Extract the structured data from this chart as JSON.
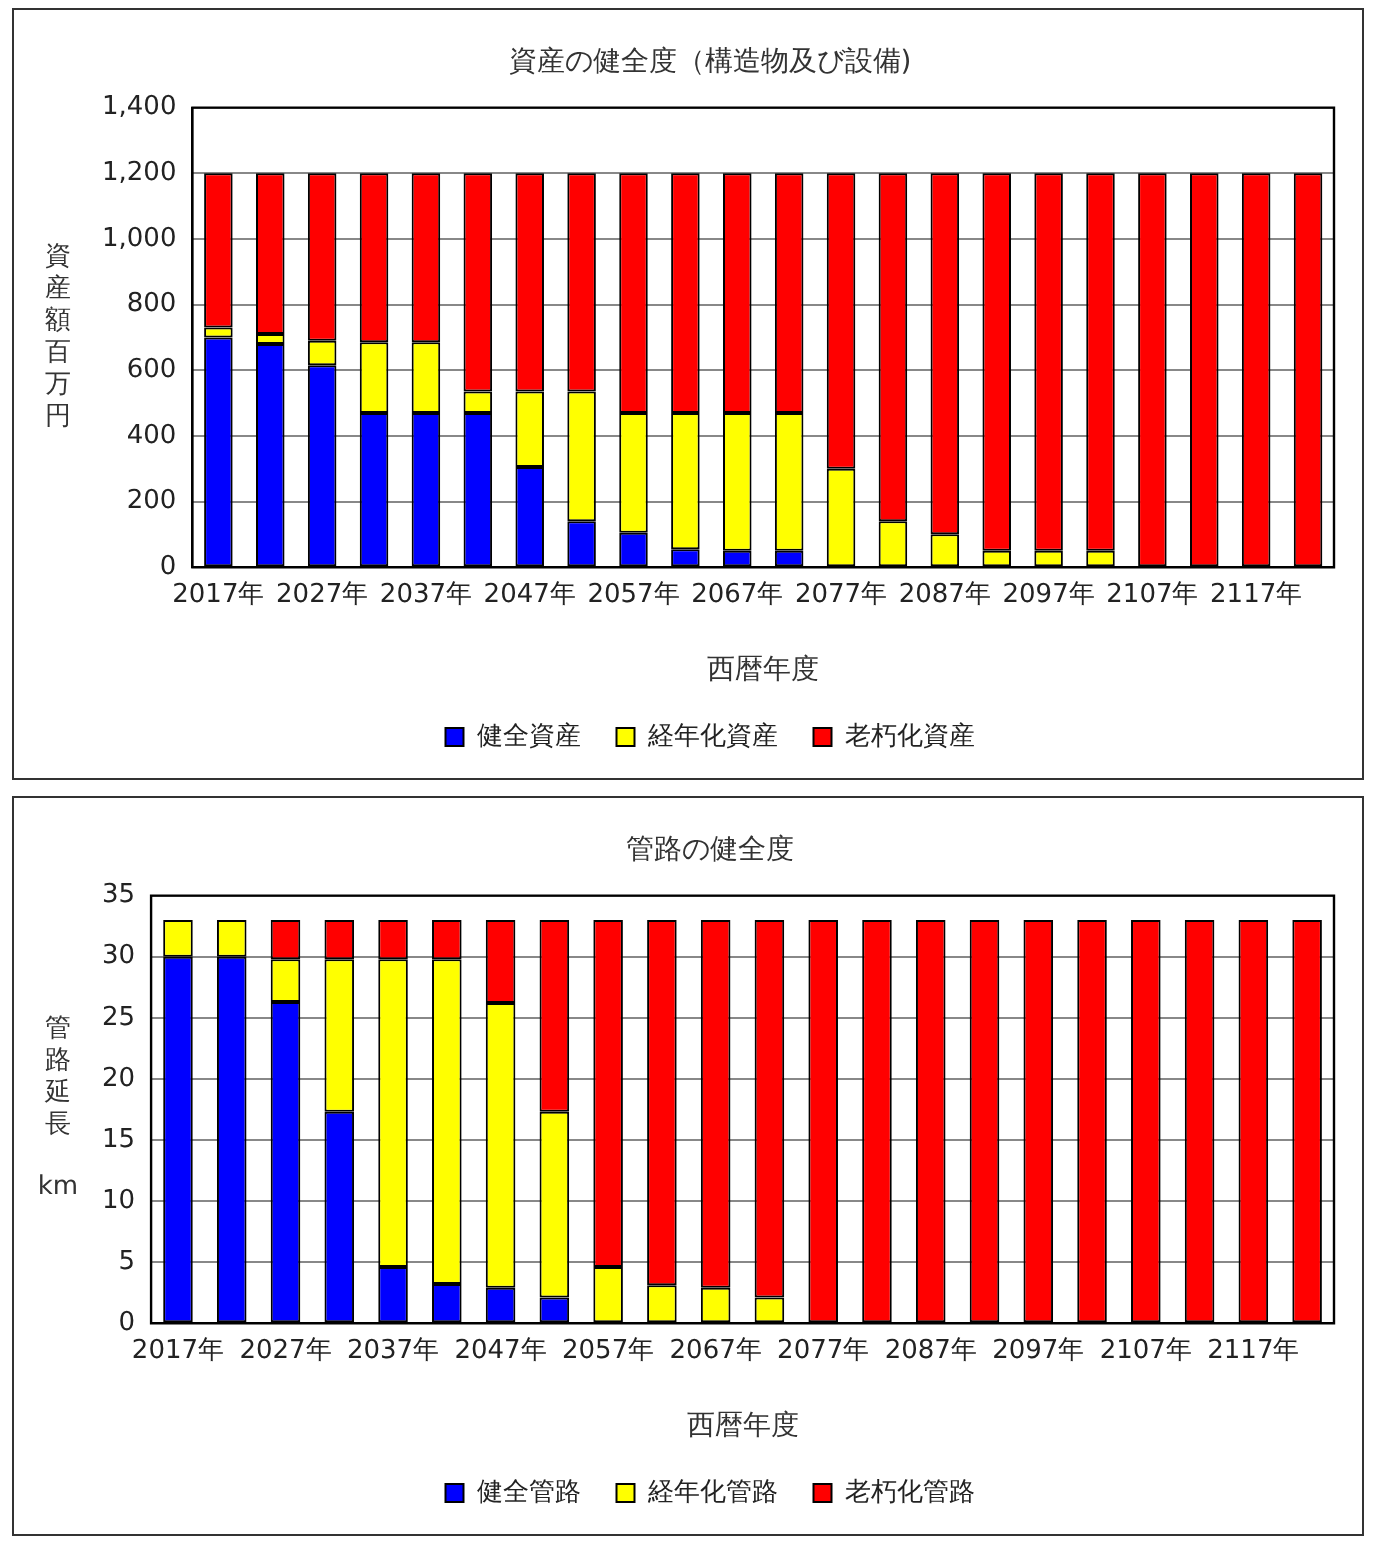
{
  "chart_data": [
    {
      "type": "bar",
      "title": "資産の健全度（構造物及び設備)",
      "xlabel": "西暦年度",
      "ylabel": "資産額百万円",
      "categories": [
        "2017年",
        null,
        "2027年",
        null,
        "2037年",
        null,
        "2047年",
        null,
        "2057年",
        null,
        "2067年",
        null,
        "2077年",
        null,
        "2087年",
        null,
        "2097年",
        null,
        "2107年",
        null,
        "2117年",
        null
      ],
      "stacked": true,
      "series": [
        {
          "name": "健全資産",
          "color": "#0000ff",
          "values": [
            700,
            680,
            615,
            470,
            470,
            470,
            305,
            140,
            105,
            55,
            50,
            50,
            0,
            0,
            0,
            0,
            0,
            0,
            0,
            0,
            0,
            0
          ]
        },
        {
          "name": "経年化資産",
          "color": "#ffff00",
          "values": [
            30,
            30,
            75,
            215,
            215,
            65,
            230,
            395,
            365,
            415,
            420,
            420,
            300,
            140,
            100,
            50,
            50,
            50,
            0,
            0,
            0,
            0
          ]
        },
        {
          "name": "老朽化資産",
          "color": "#ff0000",
          "values": [
            470,
            490,
            510,
            515,
            515,
            665,
            665,
            665,
            730,
            730,
            730,
            730,
            900,
            1060,
            1100,
            1150,
            1150,
            1150,
            1200,
            1200,
            1200,
            1200
          ]
        }
      ],
      "ylim": [
        0,
        1400
      ],
      "yticks": [
        0,
        200,
        400,
        600,
        800,
        {
          "value": 1000,
          "label": "1,000"
        },
        {
          "value": 1200,
          "label": "1,200"
        },
        {
          "value": 1400,
          "label": "1,400"
        }
      ],
      "grid": "y",
      "legend": "bottom"
    },
    {
      "type": "bar",
      "title": "管路の健全度",
      "xlabel": "西暦年度",
      "ylabel": "管路延長 km",
      "categories": [
        "2017年",
        null,
        "2027年",
        null,
        "2037年",
        null,
        "2047年",
        null,
        "2057年",
        null,
        "2067年",
        null,
        "2077年",
        null,
        "2087年",
        null,
        "2097年",
        null,
        "2107年",
        null,
        "2117年",
        null
      ],
      "stacked": true,
      "series": [
        {
          "name": "健全管路",
          "color": "#0000ff",
          "values": [
            30,
            30,
            26.3,
            17.3,
            4.6,
            3.2,
            2.9,
            2.1,
            0,
            0,
            0,
            0,
            0,
            0,
            0,
            0,
            0,
            0,
            0,
            0,
            0,
            0
          ]
        },
        {
          "name": "経年化管路",
          "color": "#ffff00",
          "values": [
            3,
            3,
            3.5,
            12.5,
            25.2,
            26.6,
            23.3,
            15.2,
            4.6,
            3.1,
            2.9,
            2.1,
            0,
            0,
            0,
            0,
            0,
            0,
            0,
            0,
            0,
            0
          ]
        },
        {
          "name": "老朽化管路",
          "color": "#ff0000",
          "values": [
            0,
            0,
            3.2,
            3.2,
            3.2,
            3.2,
            6.8,
            15.7,
            28.4,
            29.9,
            30.1,
            30.9,
            33,
            33,
            33,
            33,
            33,
            33,
            33,
            33,
            33,
            33
          ]
        }
      ],
      "ylim": [
        0,
        35
      ],
      "yticks": [
        0,
        5,
        10,
        15,
        20,
        25,
        30,
        35
      ],
      "grid": "y",
      "legend": "bottom"
    }
  ]
}
